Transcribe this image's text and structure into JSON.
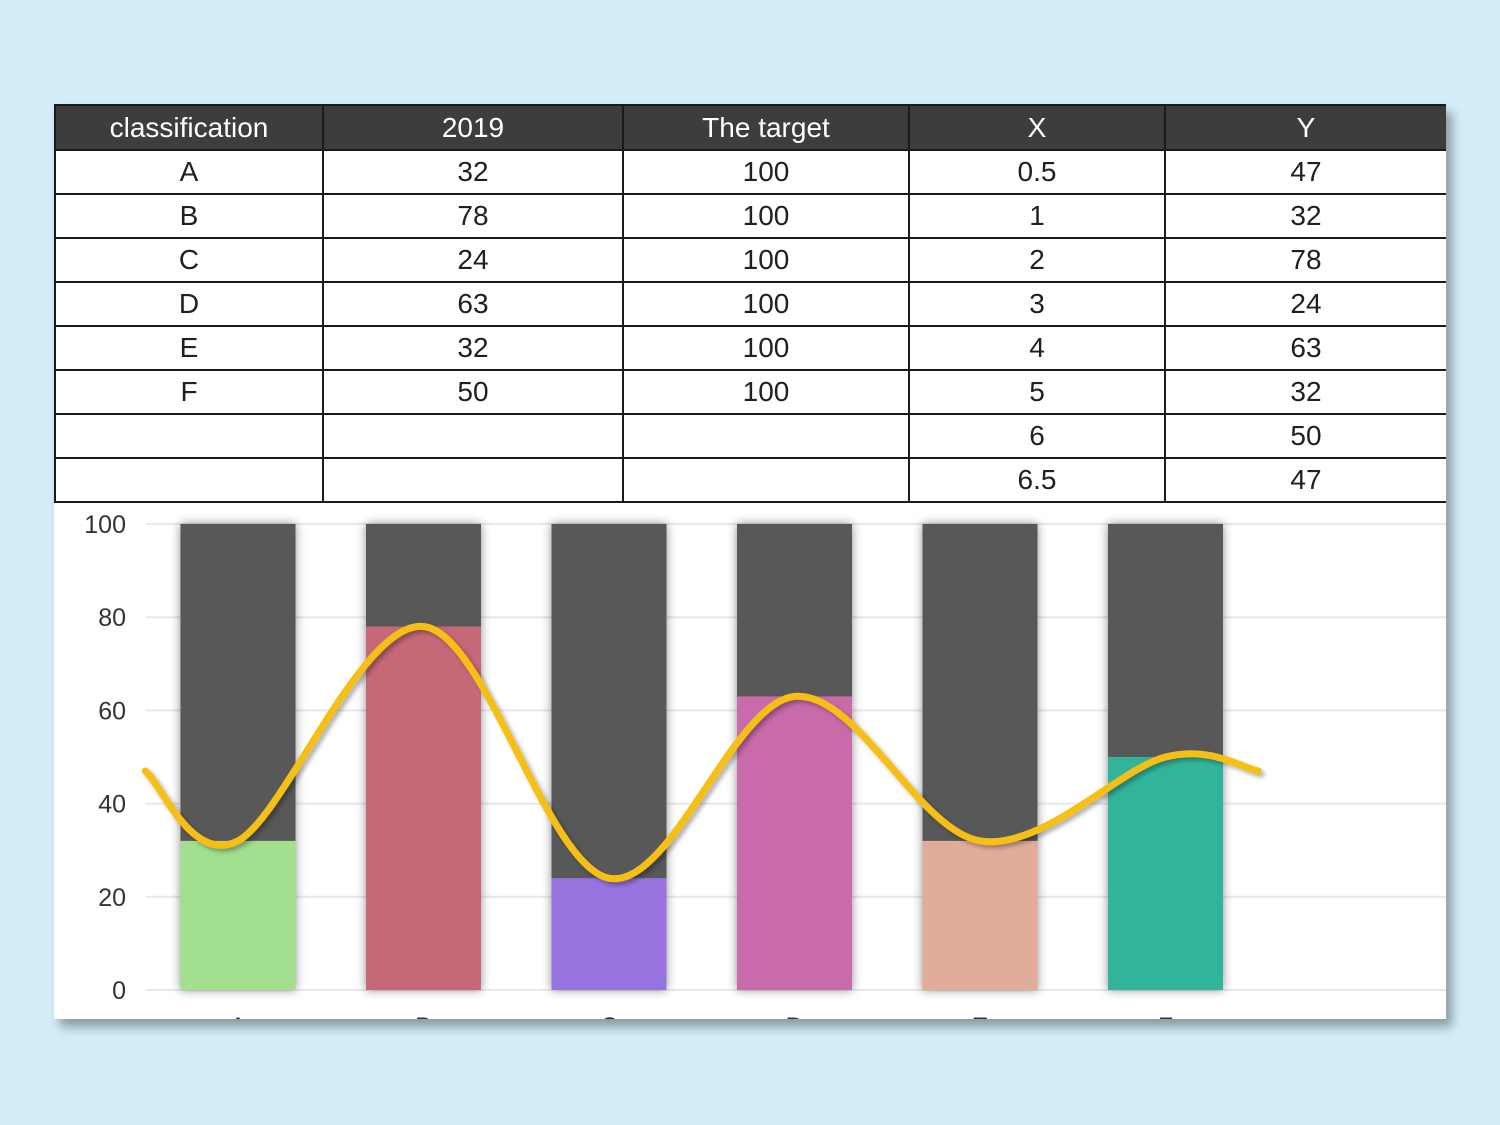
{
  "table": {
    "headers": [
      "classification",
      "2019",
      "The target",
      "X",
      "Y"
    ],
    "rows": [
      [
        "A",
        "32",
        "100",
        "0.5",
        "47"
      ],
      [
        "B",
        "78",
        "100",
        "1",
        "32"
      ],
      [
        "C",
        "24",
        "100",
        "2",
        "78"
      ],
      [
        "D",
        "63",
        "100",
        "3",
        "24"
      ],
      [
        "E",
        "32",
        "100",
        "4",
        "63"
      ],
      [
        "F",
        "50",
        "100",
        "5",
        "32"
      ],
      [
        "",
        "",
        "",
        "6",
        "50"
      ],
      [
        "",
        "",
        "",
        "6.5",
        "47"
      ]
    ]
  },
  "chart_data": {
    "type": "bar",
    "categories": [
      "A",
      "B",
      "C",
      "D",
      "E",
      "F"
    ],
    "series": [
      {
        "name": "2019",
        "values": [
          32,
          78,
          24,
          63,
          32,
          50
        ]
      },
      {
        "name": "The target",
        "values": [
          100,
          100,
          100,
          100,
          100,
          100
        ]
      }
    ],
    "line": {
      "x": [
        0.5,
        1,
        2,
        3,
        4,
        5,
        6,
        6.5
      ],
      "y": [
        47,
        32,
        78,
        24,
        63,
        32,
        50,
        47
      ],
      "smooth": true
    },
    "ylim": [
      0,
      100
    ],
    "yticks": [
      0,
      20,
      40,
      60,
      80,
      100
    ],
    "grid": true,
    "legend": "none",
    "colors": {
      "target": "#585858",
      "bars": [
        "#a2df8f",
        "#c66877",
        "#9673de",
        "#c96aab",
        "#e1ad99",
        "#33b49b"
      ],
      "line": "#f5bf14",
      "grid": "#e8e8e8"
    }
  }
}
